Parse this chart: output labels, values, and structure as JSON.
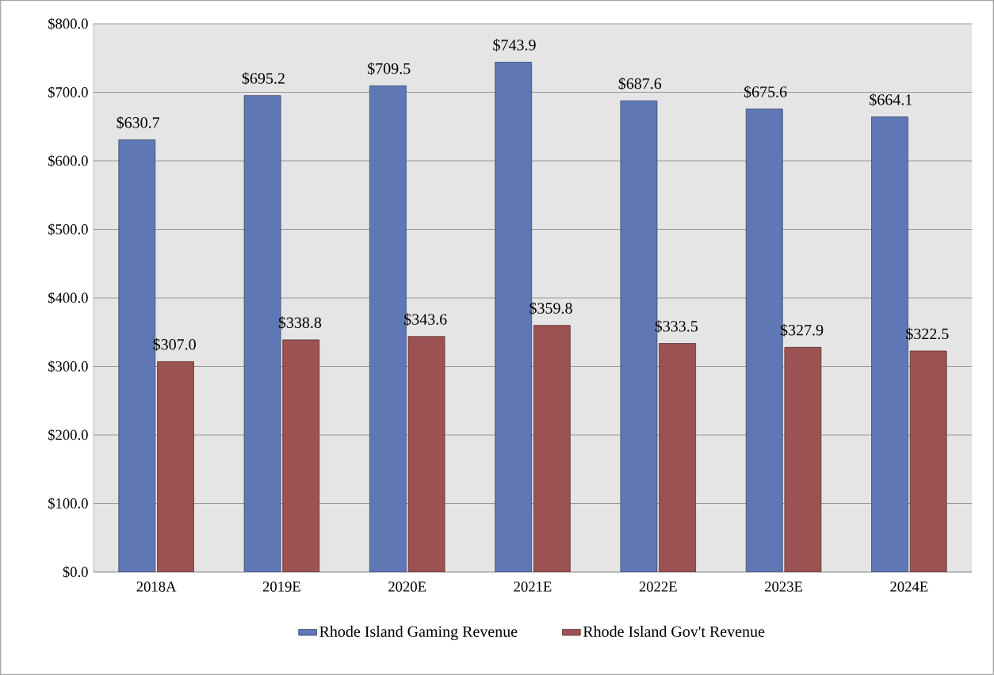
{
  "chart_data": {
    "type": "bar",
    "categories": [
      "2018A",
      "2019E",
      "2020E",
      "2021E",
      "2022E",
      "2023E",
      "2024E"
    ],
    "series": [
      {
        "name": "Rhode Island Gaming Revenue",
        "color": "#5f77b5",
        "values": [
          630.7,
          695.2,
          709.5,
          743.9,
          687.6,
          675.6,
          664.1
        ],
        "value_labels": [
          "$630.7",
          "$695.2",
          "$709.5",
          "$743.9",
          "$687.6",
          "$675.6",
          "$664.1"
        ]
      },
      {
        "name": "Rhode Island Gov't Revenue",
        "color": "#9c5252",
        "values": [
          307.0,
          338.8,
          343.6,
          359.8,
          333.5,
          327.9,
          322.5
        ],
        "value_labels": [
          "$307.0",
          "$338.8",
          "$343.6",
          "$359.8",
          "$333.5",
          "$327.9",
          "$322.5"
        ]
      }
    ],
    "ylim": [
      0,
      800
    ],
    "yticks": [
      {
        "value": 0,
        "label": "$0.0"
      },
      {
        "value": 100,
        "label": "$100.0"
      },
      {
        "value": 200,
        "label": "$200.0"
      },
      {
        "value": 300,
        "label": "$300.0"
      },
      {
        "value": 400,
        "label": "$400.0"
      },
      {
        "value": 500,
        "label": "$500.0"
      },
      {
        "value": 600,
        "label": "$600.0"
      },
      {
        "value": 700,
        "label": "$700.0"
      },
      {
        "value": 800,
        "label": "$800.0"
      }
    ],
    "grid": "y",
    "legend": "bottom"
  }
}
